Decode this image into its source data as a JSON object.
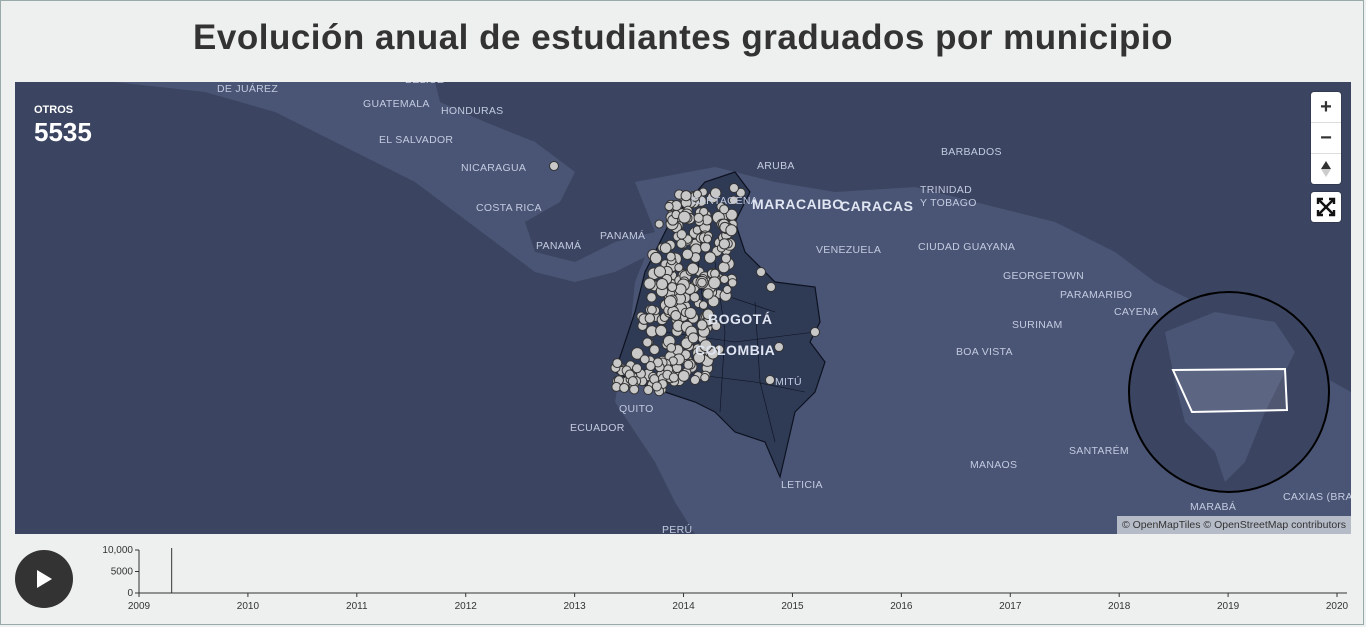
{
  "title": "Evolución anual de estudiantes graduados por municipio",
  "counter": {
    "label": "OTROS",
    "value": "5535"
  },
  "controls": {
    "zoom_in": "+",
    "zoom_out": "−",
    "compass": "compass-icon",
    "fullscreen": "fullscreen-icon"
  },
  "attribution": "© OpenMapTiles © OpenStreetMap contributors",
  "places": [
    {
      "name": "DE JUÁREZ",
      "cls": ""
    },
    {
      "name": "BELICE",
      "cls": ""
    },
    {
      "name": "GUATEMALA",
      "cls": ""
    },
    {
      "name": "HONDURAS",
      "cls": ""
    },
    {
      "name": "EL SALVADOR",
      "cls": ""
    },
    {
      "name": "NICARAGUA",
      "cls": ""
    },
    {
      "name": "COSTA RICA",
      "cls": ""
    },
    {
      "name": "PANAMÁ",
      "cls": ""
    },
    {
      "name": "PANAMÁ",
      "cls": ""
    },
    {
      "name": "ARUBA",
      "cls": ""
    },
    {
      "name": "CARTAGENA",
      "cls": ""
    },
    {
      "name": "MARACAIBO",
      "cls": "big"
    },
    {
      "name": "CARACAS",
      "cls": "big"
    },
    {
      "name": "BARBADOS",
      "cls": ""
    },
    {
      "name": "TRINIDAD",
      "cls": ""
    },
    {
      "name": "Y TOBAGO",
      "cls": ""
    },
    {
      "name": "VENEZUELA",
      "cls": ""
    },
    {
      "name": "CIUDAD GUAYANA",
      "cls": ""
    },
    {
      "name": "GEORGETOWN",
      "cls": ""
    },
    {
      "name": "PARAMARIBO",
      "cls": ""
    },
    {
      "name": "CAYENA",
      "cls": ""
    },
    {
      "name": "SURINAM",
      "cls": ""
    },
    {
      "name": "BOGOTÁ",
      "cls": "big"
    },
    {
      "name": "COLOMBIA",
      "cls": "big"
    },
    {
      "name": "BOA VISTA",
      "cls": ""
    },
    {
      "name": "MITÚ",
      "cls": ""
    },
    {
      "name": "QUITO",
      "cls": ""
    },
    {
      "name": "ECUADOR",
      "cls": ""
    },
    {
      "name": "MANAOS",
      "cls": ""
    },
    {
      "name": "SANTARÉM",
      "cls": ""
    },
    {
      "name": "LETICIA",
      "cls": ""
    },
    {
      "name": "MARABÁ",
      "cls": ""
    },
    {
      "name": "CAXIAS (BRAS",
      "cls": ""
    },
    {
      "name": "PERÚ",
      "cls": ""
    }
  ],
  "timeline": {
    "years": [
      "2009",
      "2010",
      "2011",
      "2012",
      "2013",
      "2014",
      "2015",
      "2016",
      "2017",
      "2018",
      "2019",
      "2020"
    ],
    "y_ticks": [
      "10,000",
      "5000",
      "0"
    ],
    "current_year": 2009.3
  }
}
